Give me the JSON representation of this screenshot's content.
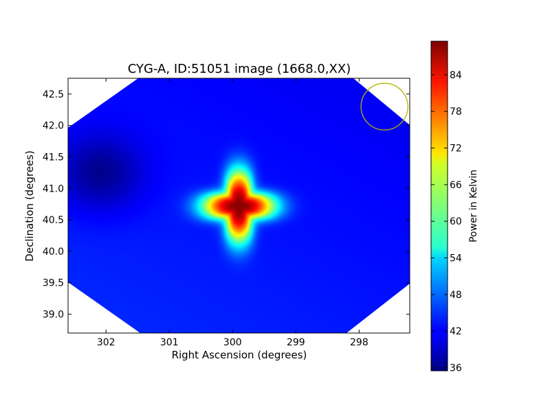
{
  "chart_data": {
    "type": "heatmap",
    "title": "CYG-A, ID:51051 image (1668.0,XX)",
    "xlabel": "Right Ascension (degrees)",
    "ylabel": "Declination (degrees)",
    "xlim": [
      302.6,
      297.2
    ],
    "ylim": [
      38.7,
      42.75
    ],
    "x_ticks": [
      302,
      301,
      300,
      299,
      298
    ],
    "x_tick_labels": [
      "302",
      "301",
      "300",
      "299",
      "298"
    ],
    "y_ticks": [
      39.0,
      39.5,
      40.0,
      40.5,
      41.0,
      41.5,
      42.0,
      42.5
    ],
    "y_tick_labels": [
      "39.0",
      "39.5",
      "40.0",
      "40.5",
      "41.0",
      "41.5",
      "42.0",
      "42.5"
    ],
    "grid": false,
    "colormap": "jet",
    "colorbar": {
      "label": "Power in Kelvin",
      "min": 35.5,
      "max": 89.5,
      "ticks": [
        36,
        42,
        48,
        54,
        60,
        66,
        72,
        78,
        84
      ],
      "tick_labels": [
        "36",
        "42",
        "48",
        "54",
        "60",
        "66",
        "72",
        "78",
        "84"
      ]
    },
    "background_level": 43,
    "features": [
      {
        "kind": "peak",
        "ra": 299.9,
        "dec": 40.72,
        "value": 89
      },
      {
        "kind": "minimum",
        "ra": 302.1,
        "dec": 41.25,
        "value": 36
      }
    ],
    "beam_circle": {
      "ra": 297.6,
      "dec": 42.3,
      "radius_deg": 0.37,
      "color": "#b5b500"
    },
    "blank_color": "#ffffff"
  }
}
